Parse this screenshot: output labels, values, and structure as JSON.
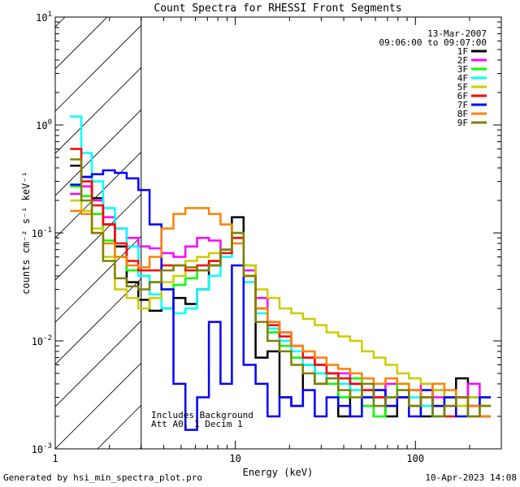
{
  "chart_data": {
    "type": "line",
    "title": "Count Spectra for RHESSI Front Segments",
    "xlabel": "Energy (keV)",
    "ylabel": "counts cm⁻² s⁻¹ keV⁻¹",
    "xscale": "log",
    "yscale": "log",
    "xlim": [
      1,
      300
    ],
    "ylim": [
      0.001,
      10
    ],
    "x_tick_labels": [
      {
        "value": 1,
        "label": "1"
      },
      {
        "value": 10,
        "label": "10"
      },
      {
        "value": 100,
        "label": "100"
      }
    ],
    "y_tick_labels": [
      {
        "value": 0.001,
        "base": "10",
        "exp": "-3"
      },
      {
        "value": 0.01,
        "base": "10",
        "exp": "-2"
      },
      {
        "value": 0.1,
        "base": "10",
        "exp": "-1"
      },
      {
        "value": 1,
        "base": "10",
        "exp": "0"
      },
      {
        "value": 10,
        "base": "10",
        "exp": "1"
      }
    ],
    "hatched_region_keV": [
      1,
      3
    ],
    "annotations": {
      "date": "13-Mar-2007",
      "time_range": "09:06:00 to 09:07:00",
      "background_note": "Includes Background",
      "attenuator_note": "Att A0, 1 Decim 1"
    },
    "series": [
      {
        "name": "1F",
        "color": "#000000",
        "x": [
          1.3,
          1.5,
          1.7,
          2.0,
          2.3,
          2.7,
          3.1,
          3.6,
          4.2,
          4.9,
          5.7,
          6.6,
          7.7,
          8.9,
          10.3,
          12,
          14,
          16.3,
          19,
          22,
          25.6,
          29.8,
          34.6,
          40.2,
          46.8,
          54.4,
          63.2,
          73.5,
          85.4,
          99.3,
          115.5,
          134.3,
          156,
          181.4,
          211,
          245.3
        ],
        "y": [
          0.42,
          0.33,
          0.21,
          0.12,
          0.075,
          0.035,
          0.024,
          0.019,
          0.02,
          0.025,
          0.022,
          0.03,
          0.05,
          0.07,
          0.14,
          0.04,
          0.007,
          0.008,
          0.003,
          0.0025,
          0.006,
          0.004,
          0.005,
          0.002,
          0.004,
          0.003,
          0.0035,
          0.002,
          0.003,
          0.0025,
          0.002,
          0.0035,
          0.003,
          0.0045,
          0.003,
          0.0025
        ]
      },
      {
        "name": "2F",
        "color": "#ff00ff",
        "x": [
          1.3,
          1.5,
          1.7,
          2.0,
          2.3,
          2.7,
          3.1,
          3.6,
          4.2,
          4.9,
          5.7,
          6.6,
          7.7,
          8.9,
          10.3,
          12,
          14,
          16.3,
          19,
          22,
          25.6,
          29.8,
          34.6,
          40.2,
          46.8,
          54.4,
          63.2,
          73.5,
          85.4,
          99.3,
          115.5,
          134.3,
          156,
          181.4,
          211,
          245.3
        ],
        "y": [
          0.23,
          0.27,
          0.2,
          0.14,
          0.11,
          0.09,
          0.075,
          0.072,
          0.065,
          0.06,
          0.075,
          0.09,
          0.085,
          0.07,
          0.09,
          0.045,
          0.025,
          0.015,
          0.012,
          0.009,
          0.007,
          0.006,
          0.0045,
          0.005,
          0.004,
          0.0035,
          0.003,
          0.004,
          0.003,
          0.0025,
          0.004,
          0.003,
          0.0025,
          0.003,
          0.004,
          0.003
        ]
      },
      {
        "name": "3F",
        "color": "#00ff00",
        "x": [
          1.3,
          1.5,
          1.7,
          2.0,
          2.3,
          2.7,
          3.1,
          3.6,
          4.2,
          4.9,
          5.7,
          6.6,
          7.7,
          8.9,
          10.3,
          12,
          14,
          16.3,
          19,
          22,
          25.6,
          29.8,
          34.6,
          40.2,
          46.8,
          54.4,
          63.2,
          73.5,
          85.4,
          99.3,
          115.5,
          134.3,
          156,
          181.4,
          211,
          245.3
        ],
        "y": [
          0.27,
          0.22,
          0.15,
          0.085,
          0.06,
          0.045,
          0.04,
          0.035,
          0.03,
          0.033,
          0.038,
          0.045,
          0.055,
          0.07,
          0.1,
          0.05,
          0.02,
          0.012,
          0.009,
          0.007,
          0.006,
          0.005,
          0.004,
          0.003,
          0.0045,
          0.0025,
          0.002,
          0.003,
          0.004,
          0.0025,
          0.003,
          0.002,
          0.003,
          0.0025,
          0.002,
          0.003
        ]
      },
      {
        "name": "4F",
        "color": "#00ffff",
        "x": [
          1.3,
          1.5,
          1.7,
          2.0,
          2.3,
          2.7,
          3.1,
          3.6,
          4.2,
          4.9,
          5.7,
          6.6,
          7.7,
          8.9,
          10.3,
          12,
          14,
          16.3,
          19,
          22,
          25.6,
          29.8,
          34.6,
          40.2,
          46.8,
          54.4,
          63.2,
          73.5,
          85.4,
          99.3,
          115.5,
          134.3,
          156,
          181.4,
          211,
          245.3
        ],
        "y": [
          1.2,
          0.55,
          0.3,
          0.17,
          0.11,
          0.075,
          0.04,
          0.027,
          0.02,
          0.018,
          0.02,
          0.03,
          0.04,
          0.06,
          0.08,
          0.035,
          0.018,
          0.013,
          0.01,
          0.008,
          0.006,
          0.005,
          0.0045,
          0.004,
          0.0035,
          0.003,
          0.0025,
          0.003,
          0.0035,
          0.003,
          0.0025,
          0.002,
          0.003,
          0.0025,
          0.003,
          0.002
        ]
      },
      {
        "name": "5F",
        "color": "#cccc00",
        "x": [
          1.3,
          1.5,
          1.7,
          2.0,
          2.3,
          2.7,
          3.1,
          3.6,
          4.2,
          4.9,
          5.7,
          6.6,
          7.7,
          8.9,
          10.3,
          12,
          14,
          16.3,
          19,
          22,
          25.6,
          29.8,
          34.6,
          40.2,
          46.8,
          54.4,
          63.2,
          73.5,
          85.4,
          99.3,
          115.5,
          134.3,
          156,
          181.4,
          211,
          245.3
        ],
        "y": [
          0.2,
          0.16,
          0.11,
          0.06,
          0.03,
          0.025,
          0.02,
          0.025,
          0.035,
          0.04,
          0.055,
          0.06,
          0.065,
          0.07,
          0.09,
          0.05,
          0.03,
          0.025,
          0.02,
          0.018,
          0.016,
          0.014,
          0.012,
          0.011,
          0.01,
          0.008,
          0.007,
          0.006,
          0.005,
          0.0045,
          0.004,
          0.0035,
          0.003,
          0.0025,
          0.003,
          0.0025
        ]
      },
      {
        "name": "6F",
        "color": "#ff0000",
        "x": [
          1.3,
          1.5,
          1.7,
          2.0,
          2.3,
          2.7,
          3.1,
          3.6,
          4.2,
          4.9,
          5.7,
          6.6,
          7.7,
          8.9,
          10.3,
          12,
          14,
          16.3,
          19,
          22,
          25.6,
          29.8,
          34.6,
          40.2,
          46.8,
          54.4,
          63.2,
          73.5,
          85.4,
          99.3,
          115.5,
          134.3,
          156,
          181.4,
          211,
          245.3
        ],
        "y": [
          0.6,
          0.3,
          0.18,
          0.12,
          0.08,
          0.055,
          0.045,
          0.045,
          0.05,
          0.05,
          0.045,
          0.05,
          0.055,
          0.065,
          0.09,
          0.04,
          0.02,
          0.014,
          0.011,
          0.009,
          0.007,
          0.006,
          0.005,
          0.0045,
          0.004,
          0.0035,
          0.003,
          0.0025,
          0.003,
          0.0035,
          0.003,
          0.0025,
          0.002,
          0.003,
          0.0025,
          0.002
        ]
      },
      {
        "name": "7F",
        "color": "#0000ff",
        "x": [
          1.3,
          1.5,
          1.7,
          2.0,
          2.3,
          2.7,
          3.1,
          3.6,
          4.2,
          4.9,
          5.7,
          6.6,
          7.7,
          8.9,
          10.3,
          12,
          14,
          16.3,
          19,
          22,
          25.6,
          29.8,
          34.6,
          40.2,
          46.8,
          54.4,
          63.2,
          73.5,
          85.4,
          99.3,
          115.5,
          134.3,
          156,
          181.4,
          211,
          245.3
        ],
        "y": [
          0.28,
          0.33,
          0.35,
          0.38,
          0.36,
          0.32,
          0.25,
          0.12,
          0.03,
          0.004,
          0.0015,
          0.003,
          0.015,
          0.004,
          0.05,
          0.006,
          0.004,
          0.002,
          0.003,
          0.0025,
          0.0035,
          0.002,
          0.003,
          0.0025,
          0.002,
          0.003,
          0.0035,
          0.0025,
          0.003,
          0.002,
          0.0035,
          0.0025,
          0.003,
          0.002,
          0.0025,
          0.003
        ]
      },
      {
        "name": "8F",
        "color": "#ff8000",
        "x": [
          1.3,
          1.5,
          1.7,
          2.0,
          2.3,
          2.7,
          3.1,
          3.6,
          4.2,
          4.9,
          5.7,
          6.6,
          7.7,
          8.9,
          10.3,
          12,
          14,
          16.3,
          19,
          22,
          25.6,
          29.8,
          34.6,
          40.2,
          46.8,
          54.4,
          63.2,
          73.5,
          85.4,
          99.3,
          115.5,
          134.3,
          156,
          181.4,
          211,
          245.3
        ],
        "y": [
          0.16,
          0.15,
          0.1,
          0.08,
          0.06,
          0.05,
          0.048,
          0.06,
          0.11,
          0.15,
          0.17,
          0.17,
          0.15,
          0.12,
          0.08,
          0.04,
          0.02,
          0.015,
          0.012,
          0.009,
          0.008,
          0.007,
          0.006,
          0.0055,
          0.005,
          0.0045,
          0.004,
          0.0045,
          0.004,
          0.0035,
          0.003,
          0.004,
          0.0035,
          0.003,
          0.0025,
          0.002
        ]
      },
      {
        "name": "9F",
        "color": "#808000",
        "x": [
          1.3,
          1.5,
          1.7,
          2.0,
          2.3,
          2.7,
          3.1,
          3.6,
          4.2,
          4.9,
          5.7,
          6.6,
          7.7,
          8.9,
          10.3,
          12,
          14,
          16.3,
          19,
          22,
          25.6,
          29.8,
          34.6,
          40.2,
          46.8,
          54.4,
          63.2,
          73.5,
          85.4,
          99.3,
          115.5,
          134.3,
          156,
          181.4,
          211,
          245.3
        ],
        "y": [
          0.48,
          0.2,
          0.1,
          0.055,
          0.038,
          0.032,
          0.03,
          0.035,
          0.045,
          0.05,
          0.048,
          0.045,
          0.05,
          0.07,
          0.1,
          0.04,
          0.015,
          0.01,
          0.008,
          0.006,
          0.005,
          0.004,
          0.0045,
          0.0035,
          0.003,
          0.004,
          0.0025,
          0.003,
          0.0035,
          0.0025,
          0.003,
          0.002,
          0.0025,
          0.003,
          0.002,
          0.0025
        ]
      }
    ]
  },
  "footer": {
    "generated_by": "Generated by hsi_min_spectra_plot.pro",
    "timestamp": "10-Apr-2023 14:08"
  }
}
